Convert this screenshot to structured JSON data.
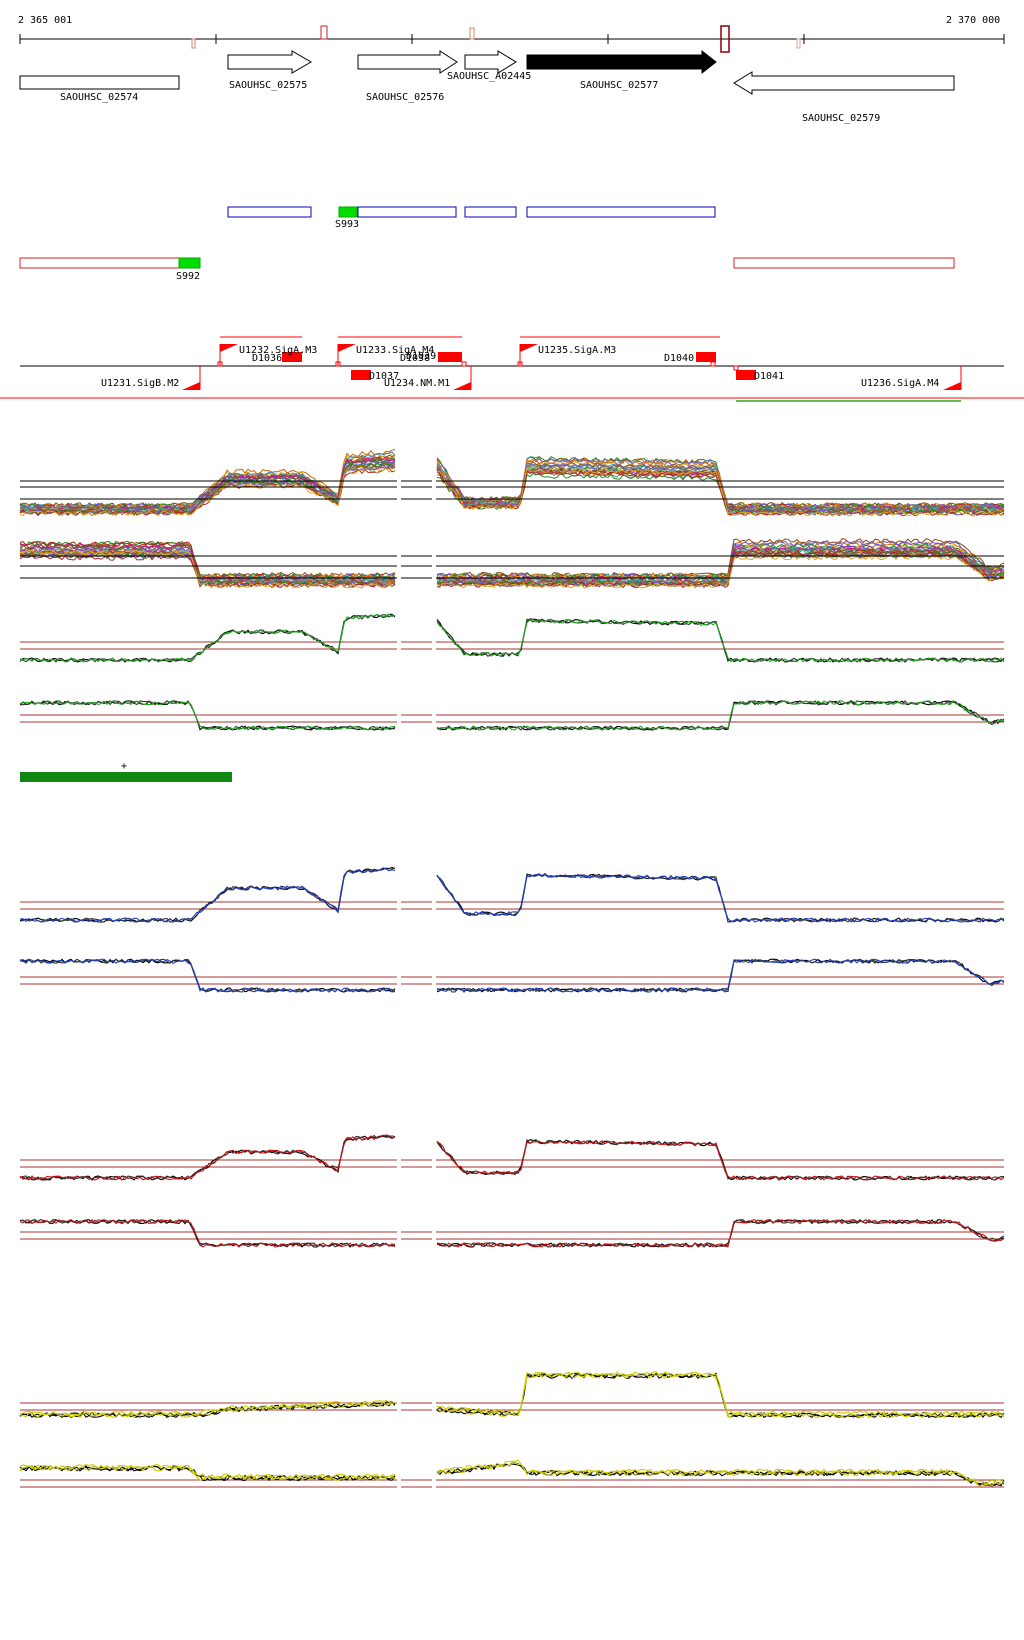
{
  "coordinates": {
    "start": "2 365 001",
    "end": "2 370 000"
  },
  "genes": [
    {
      "id": "gene-02574",
      "label": "SAOUHSC_02574",
      "strand": "none",
      "fill": "#ffffff"
    },
    {
      "id": "gene-02575",
      "label": "SAOUHSC_02575",
      "strand": "+",
      "fill": "#ffffff"
    },
    {
      "id": "gene-02576",
      "label": "SAOUHSC_02576",
      "strand": "+",
      "fill": "#ffffff"
    },
    {
      "id": "gene-A02445",
      "label": "SAOUHSC_A02445",
      "strand": "+",
      "fill": "#ffffff"
    },
    {
      "id": "gene-02577",
      "label": "SAOUHSC_02577",
      "strand": "+",
      "fill": "#000000"
    },
    {
      "id": "gene-02579",
      "label": "SAOUHSC_02579",
      "strand": "-",
      "fill": "#ffffff"
    }
  ],
  "segments": [
    {
      "id": "S993",
      "label": "S993"
    },
    {
      "id": "S992",
      "label": "S992"
    }
  ],
  "transcription_units": [
    {
      "id": "U1232",
      "label": "U1232.SigA.M3"
    },
    {
      "id": "U1233",
      "label": "U1233.SigA.M4"
    },
    {
      "id": "U1235",
      "label": "U1235.SigA.M3"
    },
    {
      "id": "U1231",
      "label": "U1231.SigB.M2"
    },
    {
      "id": "U1234",
      "label": "U1234.NM.M1"
    },
    {
      "id": "U1236",
      "label": "U1236.SigA.M4"
    }
  ],
  "downshifts": [
    {
      "id": "D1036",
      "label": "D1036"
    },
    {
      "id": "D1038",
      "label": "D1038"
    },
    {
      "id": "D1039",
      "label": "D1039"
    },
    {
      "id": "D1037",
      "label": "D1037"
    },
    {
      "id": "D1040",
      "label": "D1040"
    },
    {
      "id": "D1041",
      "label": "D1041"
    }
  ],
  "marker": {
    "symbol": "+"
  },
  "colors": {
    "red": "#ff0000",
    "darkred": "#8b0000",
    "blue_box": "#0000bb",
    "green": "#00dd00",
    "darkgreen": "#118811",
    "track_blue": "#1a3fcc",
    "track_red": "#cc1111",
    "track_yellow": "#cccc00",
    "track_green": "#22aa22"
  }
}
